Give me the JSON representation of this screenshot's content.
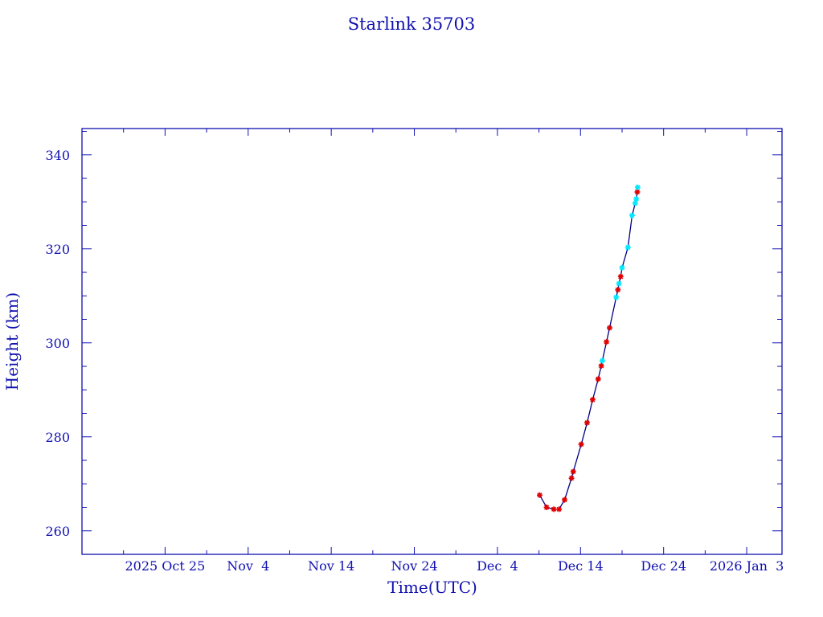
{
  "chart_data": {
    "type": "line",
    "title": "Starlink 35703",
    "xlabel": "Time(UTC)",
    "ylabel": "Height (km)",
    "xlim": [
      "2025-10-15T00:00",
      "2026-01-07T06:00"
    ],
    "ylim": [
      255,
      345.6
    ],
    "x_ticks": [
      {
        "date": "2025-10-25",
        "label": "2025 Oct 25"
      },
      {
        "date": "2025-11-04",
        "label": "Nov  4"
      },
      {
        "date": "2025-11-14",
        "label": "Nov 14"
      },
      {
        "date": "2025-11-24",
        "label": "Nov 24"
      },
      {
        "date": "2025-12-04",
        "label": "Dec  4"
      },
      {
        "date": "2025-12-14",
        "label": "Dec 14"
      },
      {
        "date": "2025-12-24",
        "label": "Dec 24"
      },
      {
        "date": "2026-01-03",
        "label": "2026 Jan  3"
      }
    ],
    "y_ticks": [
      260,
      280,
      300,
      320,
      340
    ],
    "grid": false,
    "colors": {
      "axis": "#1010b0",
      "line": "#000080",
      "red": "#e00000",
      "cyan": "#00e8ff"
    },
    "series": [
      {
        "color": "red",
        "points": [
          [
            "2025-12-09T02:00",
            267.6
          ],
          [
            "2025-12-09T22:00",
            265.0
          ],
          [
            "2025-12-10T19:00",
            264.6
          ],
          [
            "2025-12-11T10:00",
            264.6
          ],
          [
            "2025-12-12T02:00",
            266.6
          ],
          [
            "2025-12-12T22:00",
            271.2
          ],
          [
            "2025-12-13T03:00",
            272.6
          ],
          [
            "2025-12-14T02:00",
            278.4
          ],
          [
            "2025-12-14T19:00",
            283.0
          ],
          [
            "2025-12-15T11:00",
            287.9
          ],
          [
            "2025-12-16T03:00",
            292.3
          ],
          [
            "2025-12-16T12:00",
            295.1
          ],
          [
            "2025-12-17T03:00",
            300.2
          ],
          [
            "2025-12-17T12:00",
            303.2
          ],
          [
            "2025-12-18T12:00",
            311.3
          ],
          [
            "2025-12-18T20:00",
            314.1
          ],
          [
            "2025-12-20T20:00",
            332.1
          ]
        ]
      },
      {
        "color": "cyan",
        "points": [
          [
            "2025-12-16T15:00",
            296.2
          ],
          [
            "2025-12-18T07:00",
            309.7
          ],
          [
            "2025-12-18T15:00",
            312.6
          ],
          [
            "2025-12-19T00:00",
            316.0
          ],
          [
            "2025-12-19T17:00",
            320.3
          ],
          [
            "2025-12-20T05:00",
            327.1
          ],
          [
            "2025-12-20T14:00",
            329.7
          ],
          [
            "2025-12-20T17:00",
            330.6
          ],
          [
            "2025-12-20T21:00",
            333.1
          ]
        ]
      }
    ]
  }
}
